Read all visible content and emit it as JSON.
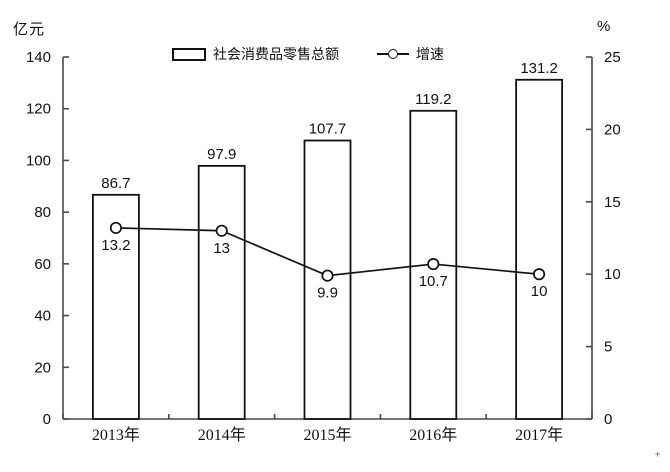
{
  "page": {
    "unit_left": "亿元",
    "unit_right": "%",
    "artifact_mark": "+"
  },
  "legend": {
    "bar_label": "社会消费品零售总额",
    "line_label": "增速"
  },
  "chart_data": {
    "type": "bar+line",
    "title": "",
    "categories": [
      "2013年",
      "2014年",
      "2015年",
      "2016年",
      "2017年"
    ],
    "series": [
      {
        "name": "社会消费品零售总额",
        "type": "bar",
        "axis": "left",
        "values": [
          86.7,
          97.9,
          107.7,
          119.2,
          131.2
        ],
        "labels": [
          "86.7",
          "97.9",
          "107.7",
          "119.2",
          "131.2"
        ],
        "fill": "#ffffff",
        "stroke": "#111111"
      },
      {
        "name": "增速",
        "type": "line",
        "axis": "right",
        "values": [
          13.2,
          13,
          9.9,
          10.7,
          10
        ],
        "labels": [
          "13.2",
          "13",
          "9.9",
          "10.7",
          "10"
        ],
        "stroke": "#111111",
        "marker": "circle-open"
      }
    ],
    "left_axis": {
      "label": "亿元",
      "min": 0,
      "max": 140,
      "ticks": [
        0,
        20,
        40,
        60,
        80,
        100,
        120,
        140
      ]
    },
    "right_axis": {
      "label": "%",
      "min": 0,
      "max": 25,
      "ticks": [
        0,
        5,
        10,
        15,
        20,
        25
      ]
    },
    "legend_position": "top",
    "grid": false,
    "axis_color": "#4a4a4a",
    "background": "#ffffff"
  }
}
